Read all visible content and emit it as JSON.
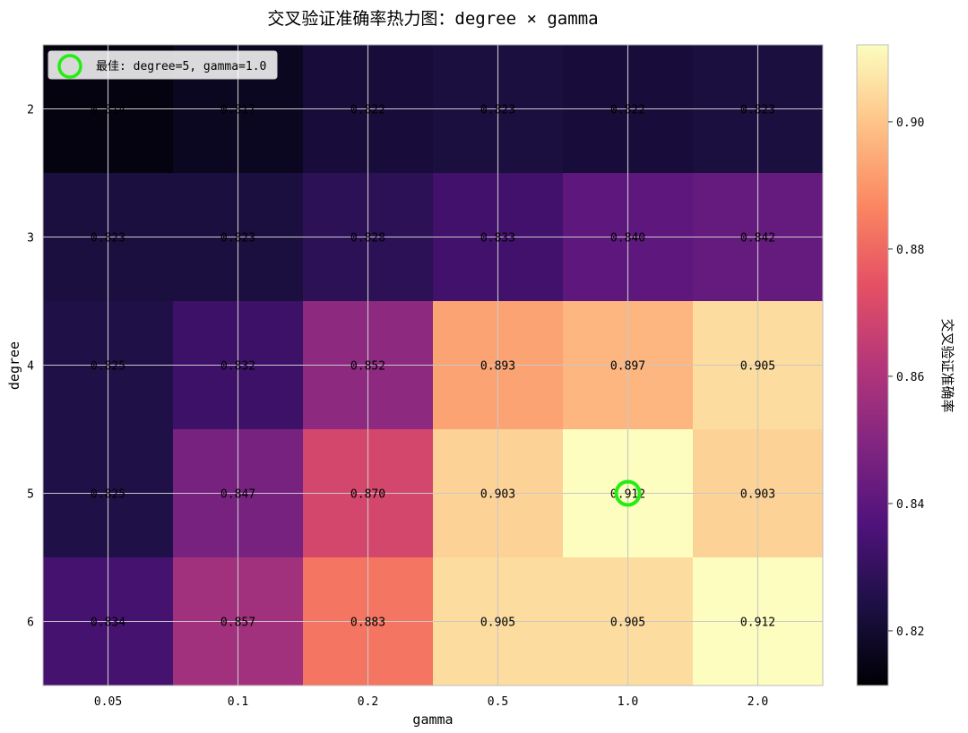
{
  "chart_data": {
    "type": "heatmap",
    "title": "交叉验证准确率热力图：degree × gamma",
    "xlabel": "gamma",
    "ylabel": "degree",
    "x_categories": [
      "0.05",
      "0.1",
      "0.2",
      "0.5",
      "1.0",
      "2.0"
    ],
    "y_categories": [
      "2",
      "3",
      "4",
      "5",
      "6"
    ],
    "values": [
      [
        0.814,
        0.817,
        0.822,
        0.823,
        0.822,
        0.823
      ],
      [
        0.823,
        0.823,
        0.828,
        0.833,
        0.84,
        0.842
      ],
      [
        0.825,
        0.832,
        0.852,
        0.893,
        0.897,
        0.905
      ],
      [
        0.825,
        0.847,
        0.87,
        0.903,
        0.912,
        0.903
      ],
      [
        0.834,
        0.857,
        0.883,
        0.905,
        0.905,
        0.912
      ]
    ],
    "value_labels": [
      [
        "0.814",
        "0.817",
        "0.822",
        "0.823",
        "0.822",
        "0.823"
      ],
      [
        "0.823",
        "0.823",
        "0.828",
        "0.833",
        "0.840",
        "0.842"
      ],
      [
        "0.825",
        "0.832",
        "0.852",
        "0.893",
        "0.897",
        "0.905"
      ],
      [
        "0.825",
        "0.847",
        "0.870",
        "0.903",
        "0.912",
        "0.903"
      ],
      [
        "0.834",
        "0.857",
        "0.883",
        "0.905",
        "0.905",
        "0.912"
      ]
    ],
    "colormap": "magma",
    "vmin": 0.8114,
    "vmax": 0.9121,
    "colorbar": {
      "label": "交叉验证准确率",
      "ticks": [
        0.82,
        0.84,
        0.86,
        0.88,
        0.9
      ],
      "tick_labels": [
        "0.82",
        "0.84",
        "0.86",
        "0.88",
        "0.90"
      ]
    },
    "grid": true,
    "best": {
      "degree": "5",
      "gamma": "1.0",
      "marker_color": "#22ee11"
    },
    "legend": {
      "label": "最佳: degree=5, gamma=1.0",
      "position": "top-left"
    }
  }
}
